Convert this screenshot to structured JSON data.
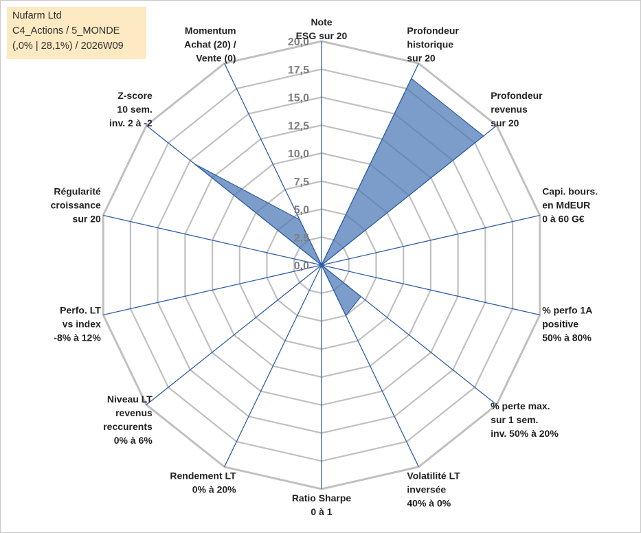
{
  "info": {
    "line1": "Nufarm Ltd",
    "line2": "C4_Actions / 5_MONDE",
    "line3": "(,0% | 28,1%) / 2026W09"
  },
  "colors": {
    "grid": "#c0c0c0",
    "spoke": "#2f5ea8",
    "fill": "#4a77b4",
    "fill_opacity": 0.72,
    "info_bg": "#fde9c2"
  },
  "chart_data": {
    "type": "radar",
    "rmax": 20,
    "grid": true,
    "ticks": [
      "0,0",
      "2,5",
      "5,0",
      "7,5",
      "10,0",
      "12,5",
      "15,0",
      "17,5",
      "20,0"
    ],
    "axes": [
      [
        "Note",
        "ESG sur 20"
      ],
      [
        "Profondeur",
        "historique",
        "sur 20"
      ],
      [
        "Profondeur",
        "revenus",
        "sur 20"
      ],
      [
        "Capi. bours.",
        "en MdEUR",
        "0 à 60 G€"
      ],
      [
        "% perfo 1A",
        "positive",
        "50% à 80%"
      ],
      [
        "% perte max.",
        "sur 1 sem.",
        "inv. 50% à 20%"
      ],
      [
        "Volatilité LT",
        "inversée",
        "40% à 0%"
      ],
      [
        "Ratio Sharpe",
        "0 à 1"
      ],
      [
        "Rendement LT",
        "0% à 20%"
      ],
      [
        "Niveau LT",
        "revenus",
        "reccurents",
        "0% à 6%"
      ],
      [
        "Perfo. LT",
        "vs index",
        "-8% à 12%"
      ],
      [
        "Régularité",
        "croissance",
        "sur 20"
      ],
      [
        "Z-score",
        "10 sem.",
        "inv. 2 à -2"
      ],
      [
        "Momentum",
        "Achat (20) /",
        "Vente (0)"
      ]
    ],
    "values": [
      0,
      18.5,
      18.5,
      0,
      0,
      4.5,
      5.0,
      0,
      0,
      0,
      0,
      0,
      14.5,
      4.5
    ]
  }
}
